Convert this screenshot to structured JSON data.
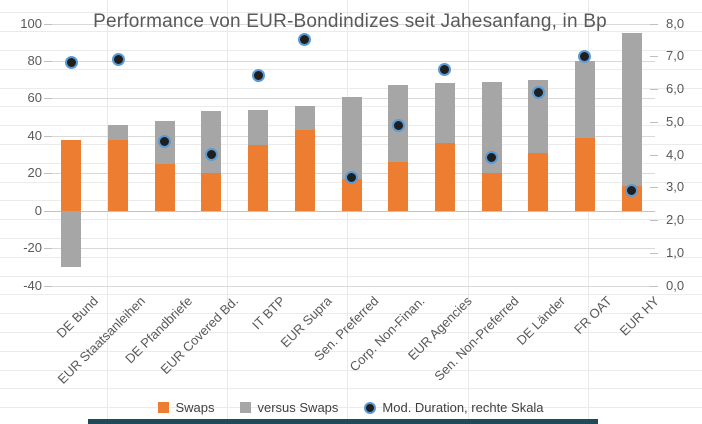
{
  "title": "Performance von EUR-Bondindizes seit Jahesanfang, in Bp",
  "legend": {
    "items": [
      {
        "label": "Swaps"
      },
      {
        "label": "versus Swaps"
      },
      {
        "label": "Mod. Duration, rechte Skala"
      }
    ]
  },
  "colors": {
    "swaps": "#ED7D31",
    "versus_swaps": "#A6A6A6",
    "duration_dot": "#1F1F1F",
    "duration_ring": "#5B9BD5",
    "grid": "#D9D9D9",
    "text": "#595959",
    "banner": "#1E4A5A"
  },
  "chart_data": {
    "type": "bar",
    "subtype": "stacked-bars-with-scatter-overlay",
    "title": "Performance von EUR-Bondindizes seit Jahesanfang, in Bp",
    "categories": [
      "DE Bund",
      "EUR Staatsanleihen",
      "DE Pfandbriefe",
      "EUR Covered Bd.",
      "IT BTP",
      "EUR Supra",
      "Sen. Preferred",
      "Corp. Non-Finan.",
      "EUR Agencies",
      "Sen. Non-Preferred",
      "DE Länder",
      "FR OAT",
      "EUR HY"
    ],
    "series": [
      {
        "name": "Swaps",
        "type": "bar",
        "axis": "left",
        "color": "#ED7D31",
        "values": [
          38,
          38,
          25,
          20,
          35,
          43,
          17,
          26,
          36,
          20,
          31,
          39,
          13
        ]
      },
      {
        "name": "versus Swaps",
        "type": "bar",
        "axis": "left",
        "color": "#A6A6A6",
        "values": [
          -30,
          8,
          23,
          33,
          19,
          13,
          44,
          41,
          32,
          49,
          39,
          41,
          82
        ]
      },
      {
        "name": "Mod. Duration, rechte Skala",
        "type": "scatter",
        "axis": "right",
        "color": "#1F1F1F",
        "ring_color": "#5B9BD5",
        "values": [
          6.8,
          6.9,
          4.4,
          4.0,
          6.4,
          7.5,
          3.3,
          4.9,
          6.6,
          3.9,
          5.9,
          7.0,
          2.9
        ]
      }
    ],
    "left_axis": {
      "min": -40,
      "max": 100,
      "step": 20,
      "tick_labels": [
        "100",
        "80",
        "60",
        "40",
        "20",
        "0",
        "-20",
        "-40"
      ]
    },
    "right_axis": {
      "min": 0,
      "max": 8,
      "step": 1,
      "tick_labels": [
        "8,0",
        "7,0",
        "6,0",
        "5,0",
        "4,0",
        "3,0",
        "2,0",
        "1,0",
        "0,0"
      ]
    },
    "grid": true,
    "stacked": true,
    "legend_position": "bottom"
  }
}
